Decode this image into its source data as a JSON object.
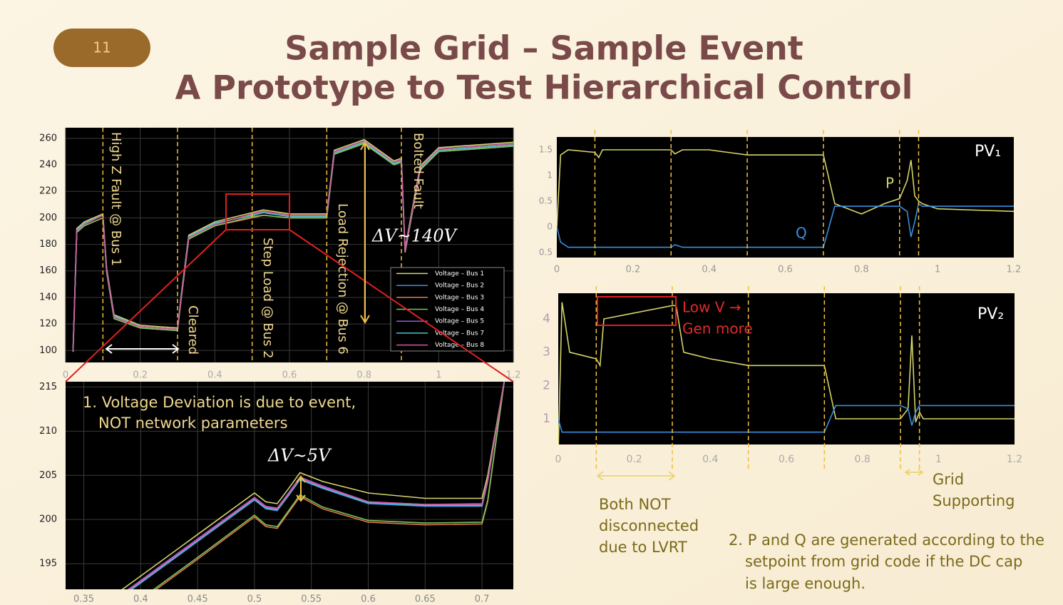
{
  "slide": {
    "number": "11",
    "title": "Sample Grid – Sample Event",
    "subtitle": "A Prototype to Test Hierarchical Control",
    "note": [
      "2. P and Q are generated according to the",
      "setpoint from grid code if the DC cap",
      "is large enough."
    ]
  },
  "chart_data": [
    {
      "type": "line",
      "xlim": [
        0,
        1.2
      ],
      "xticks": [
        0,
        0.2,
        0.4,
        0.6,
        0.8,
        1,
        1.2
      ],
      "ylim": [
        91,
        268
      ],
      "yticks": [
        100,
        120,
        140,
        160,
        180,
        200,
        220,
        240,
        260
      ],
      "grid": true,
      "legend": "lower right",
      "events": [
        0.1,
        0.3,
        0.5,
        0.7,
        0.9
      ],
      "annotations": [
        "High Z Fault @ Bus 1",
        "Cleared",
        "Step Load @ Bus 2",
        "Load Rejection @ Bus 6",
        "Bolted Fault",
        "ΔV~140V"
      ],
      "x": [
        0.02,
        0.03,
        0.05,
        0.1,
        0.11,
        0.13,
        0.2,
        0.3,
        0.31,
        0.33,
        0.4,
        0.5,
        0.53,
        0.6,
        0.7,
        0.72,
        0.8,
        0.88,
        0.9,
        0.91,
        0.95,
        1.0,
        1.2
      ],
      "series": [
        {
          "name": "Voltage – Bus 1",
          "color": "#d4d46a",
          "values": [
            102,
            192,
            197,
            203,
            162,
            127,
            119,
            117,
            142,
            187,
            197,
            204,
            206,
            203,
            203,
            251,
            259,
            243,
            245,
            177,
            239,
            253,
            257
          ]
        },
        {
          "name": "Voltage – Bus 2",
          "color": "#3a8ee0",
          "values": [
            101,
            191,
            196,
            202,
            161,
            126,
            118,
            116,
            141,
            186,
            196,
            202,
            204,
            201,
            201,
            249,
            257,
            241,
            243,
            176,
            237,
            251,
            255
          ]
        },
        {
          "name": "Voltage – Bus 3",
          "color": "#e07b4a",
          "values": [
            99,
            189,
            194,
            200,
            159,
            124,
            117,
            115,
            139,
            184,
            194,
            200,
            202,
            200,
            200,
            248,
            256,
            240,
            242,
            174,
            236,
            250,
            254
          ]
        },
        {
          "name": "Voltage – Bus 4",
          "color": "#7cc45a",
          "values": [
            99,
            189,
            194,
            200,
            159,
            124,
            117,
            115,
            139,
            184,
            194,
            201,
            202,
            200,
            200,
            248,
            256,
            240,
            242,
            174,
            236,
            250,
            254
          ]
        },
        {
          "name": "Voltage – Bus 5",
          "color": "#9a5ad6",
          "values": [
            101,
            191,
            196,
            202,
            161,
            126,
            118,
            116,
            141,
            186,
            196,
            202,
            204,
            201,
            201,
            249,
            257,
            241,
            243,
            176,
            237,
            251,
            255
          ]
        },
        {
          "name": "Voltage – Bus 7",
          "color": "#4ac8c8",
          "values": [
            101,
            191,
            196,
            202,
            161,
            126,
            118,
            116,
            141,
            186,
            196,
            202,
            204,
            201,
            201,
            249,
            257,
            241,
            243,
            176,
            237,
            251,
            255
          ]
        },
        {
          "name": "Voltage – Bus 8",
          "color": "#d45aa0",
          "values": [
            100,
            190,
            195,
            202,
            160,
            125,
            118,
            116,
            140,
            185,
            195,
            203,
            205,
            202,
            202,
            250,
            258,
            242,
            244,
            175,
            238,
            252,
            256
          ]
        }
      ]
    },
    {
      "type": "line",
      "xlim": [
        0.334,
        0.7275
      ],
      "xticks": [
        0.35,
        0.4,
        0.45,
        0.5,
        0.55,
        0.6,
        0.65,
        0.7
      ],
      "ylim": [
        192.1,
        215.6
      ],
      "yticks": [
        195,
        200,
        205,
        210,
        215
      ],
      "grid": true,
      "annotations": [
        "1. Voltage Deviation is due to event,",
        "NOT network parameters",
        "ΔV~5V"
      ],
      "x": [
        0.37,
        0.4,
        0.45,
        0.5,
        0.51,
        0.52,
        0.53,
        0.54,
        0.56,
        0.6,
        0.65,
        0.7,
        0.705,
        0.72
      ],
      "series": [
        {
          "color": "#d4d46a",
          "values": [
            190.8,
            193.6,
            198.3,
            203,
            202,
            201.8,
            203.5,
            205.3,
            204.3,
            203,
            202.4,
            202.4,
            205,
            216
          ]
        },
        {
          "color": "#3a8ee0",
          "values": [
            190,
            192.8,
            197.5,
            202.2,
            201.2,
            201,
            202.7,
            204.5,
            203.5,
            201.8,
            201.5,
            201.5,
            204.3,
            216
          ]
        },
        {
          "color": "#e07b4a",
          "values": [
            188,
            190.8,
            195.5,
            200.3,
            199.2,
            199,
            200.8,
            202.6,
            201.2,
            199.7,
            199.4,
            199.5,
            202,
            216
          ]
        },
        {
          "color": "#7cc45a",
          "values": [
            188.2,
            191,
            195.7,
            200.5,
            199.4,
            199.2,
            201,
            202.8,
            201.4,
            199.9,
            199.6,
            199.7,
            202.2,
            216
          ]
        },
        {
          "color": "#9a5ad6",
          "values": [
            190.3,
            193.1,
            197.8,
            202.5,
            201.5,
            201.3,
            203,
            204.8,
            203.8,
            202,
            201.7,
            201.8,
            204.5,
            216
          ]
        },
        {
          "color": "#4ac8c8",
          "values": [
            190.1,
            192.9,
            197.6,
            202.3,
            201.3,
            201.1,
            202.8,
            204.6,
            203.6,
            201.9,
            201.6,
            201.6,
            204.4,
            216
          ]
        },
        {
          "color": "#d45aa0",
          "values": [
            190.2,
            193,
            197.7,
            202.4,
            201.4,
            201.2,
            202.9,
            204.7,
            203.7,
            202,
            201.7,
            201.7,
            204.4,
            216
          ]
        }
      ]
    },
    {
      "type": "line",
      "title": "PV₁",
      "xlim": [
        0,
        1.2
      ],
      "xticks": [
        0,
        0.2,
        0.4,
        0.6,
        0.8,
        1,
        1.2
      ],
      "ylim": [
        -0.6,
        1.75
      ],
      "yticks": [
        {
          "value": -0.5,
          "label": "0.5"
        },
        0,
        0.5,
        1,
        1.5
      ],
      "grid": false,
      "events": [
        0.1,
        0.3,
        0.5,
        0.7,
        0.9,
        0.95
      ],
      "x": [
        0,
        0.01,
        0.03,
        0.1,
        0.11,
        0.12,
        0.3,
        0.31,
        0.33,
        0.4,
        0.5,
        0.52,
        0.7,
        0.73,
        0.8,
        0.86,
        0.9,
        0.92,
        0.93,
        0.94,
        0.95,
        0.96,
        1.0,
        1.2
      ],
      "series": [
        {
          "name": "P",
          "color": "#d4d46a",
          "values": [
            0,
            1.4,
            1.5,
            1.45,
            1.35,
            1.5,
            1.5,
            1.42,
            1.5,
            1.5,
            1.4,
            1.4,
            1.4,
            0.45,
            0.25,
            0.45,
            0.55,
            0.9,
            1.3,
            0.6,
            0.5,
            0.45,
            0.35,
            0.3
          ]
        },
        {
          "name": "Q",
          "color": "#3a8ee0",
          "values": [
            0,
            -0.3,
            -0.4,
            -0.4,
            -0.4,
            -0.4,
            -0.4,
            -0.35,
            -0.4,
            -0.4,
            -0.4,
            -0.4,
            -0.4,
            0.4,
            0.4,
            0.4,
            0.4,
            0.3,
            -0.2,
            0.1,
            0.45,
            0.4,
            0.4,
            0.4
          ]
        }
      ]
    },
    {
      "type": "line",
      "title": "PV₂",
      "xlim": [
        0,
        1.2
      ],
      "xticks": [
        0,
        0.2,
        0.4,
        0.6,
        0.8,
        1,
        1.2
      ],
      "ylim": [
        0.23,
        4.77
      ],
      "yticks": [
        1,
        2,
        3,
        4
      ],
      "grid": false,
      "events": [
        0.1,
        0.3,
        0.5,
        0.7,
        0.9,
        0.95
      ],
      "annotations": [
        "Low V →",
        "Gen more",
        "Both NOT",
        "disconnected",
        "due to LVRT",
        "Grid",
        "Supporting"
      ],
      "x": [
        0,
        0.01,
        0.03,
        0.1,
        0.11,
        0.12,
        0.3,
        0.31,
        0.33,
        0.4,
        0.5,
        0.52,
        0.7,
        0.73,
        0.8,
        0.86,
        0.9,
        0.92,
        0.93,
        0.94,
        0.95,
        0.96,
        1.0,
        1.2
      ],
      "series": [
        {
          "color": "#d4d46a",
          "values": [
            0,
            4.5,
            3,
            2.8,
            2.6,
            4,
            4.4,
            4.4,
            3,
            2.8,
            2.6,
            2.6,
            2.6,
            1,
            1,
            1,
            1,
            1.3,
            3.5,
            0.9,
            1.2,
            1,
            1,
            1
          ]
        },
        {
          "color": "#3a8ee0",
          "values": [
            1,
            0.6,
            0.6,
            0.6,
            0.6,
            0.6,
            0.6,
            0.6,
            0.6,
            0.6,
            0.6,
            0.6,
            0.6,
            1.4,
            1.4,
            1.4,
            1.4,
            1.3,
            0.8,
            1.2,
            1.4,
            1.4,
            1.4,
            1.4
          ]
        }
      ]
    }
  ]
}
